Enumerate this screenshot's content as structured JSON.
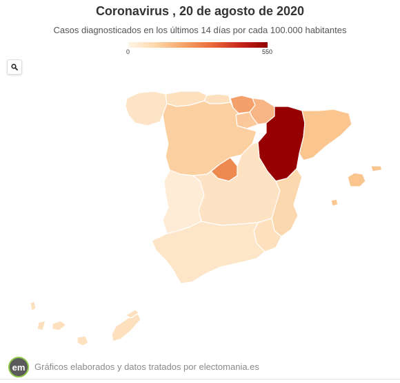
{
  "header": {
    "title": "Coronavirus , 20 de agosto de 2020",
    "subtitle": "Casos diagnosticados en los últimos 14 días por cada 100.000 habitantes"
  },
  "legend": {
    "min_label": "0",
    "max_label": "550",
    "min_value": 0,
    "max_value": 550,
    "colors": [
      "#fff5e9",
      "#fdd7a8",
      "#f7a368",
      "#e96a3b",
      "#c9271c",
      "#8f0000"
    ]
  },
  "toolbar": {
    "search_icon": "search-icon"
  },
  "map": {
    "type": "choropleth",
    "region": "Spain"
  },
  "footer": {
    "logo_text": "em",
    "credit": "Gráficos elaborados y datos tratados por electomania.es"
  }
}
